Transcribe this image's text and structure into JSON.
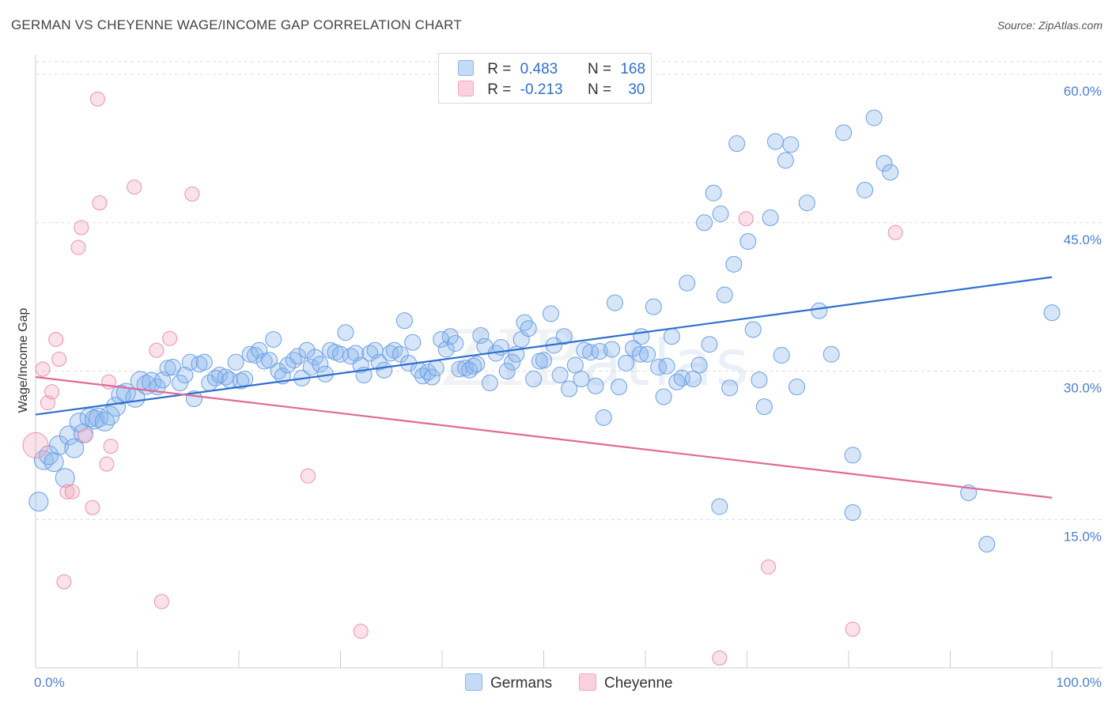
{
  "header": {
    "title": "GERMAN VS CHEYENNE WAGE/INCOME GAP CORRELATION CHART",
    "source": "Source: ZipAtlas.com"
  },
  "legend": {
    "germans": {
      "r_label": "R =",
      "r_value": "0.483",
      "n_label": "N =",
      "n_value": "168",
      "color": "#8ab4ea"
    },
    "cheyenne": {
      "r_label": "R =",
      "r_value": "-0.213",
      "n_label": "N =",
      "n_value": "30",
      "color": "#f4a8bf"
    }
  },
  "bottom_legend": {
    "germans": "Germans",
    "cheyenne": "Cheyenne"
  },
  "watermark": {
    "zip": "ZIP",
    "atlas": "atlas"
  },
  "chart_data": {
    "type": "scatter",
    "ylabel": "Wage/Income Gap",
    "xlim": [
      0,
      100
    ],
    "ylim": [
      0,
      62
    ],
    "y_ticks": [
      {
        "v": 15,
        "label": "15.0%"
      },
      {
        "v": 30,
        "label": "30.0%"
      },
      {
        "v": 45,
        "label": "45.0%"
      },
      {
        "v": 60,
        "label": "60.0%"
      }
    ],
    "x_tick_labels": [
      {
        "v": 0,
        "label": "0.0%"
      },
      {
        "v": 100,
        "label": "100.0%"
      }
    ],
    "grid": "dashed horizontal",
    "series": [
      {
        "name": "Germans",
        "color": "#6a9fe6",
        "trend": {
          "x": [
            0,
            100
          ],
          "y": [
            25.6,
            39.5
          ],
          "color": "#2f6fcf"
        },
        "points": [
          [
            0.3,
            16.8
          ],
          [
            0.8,
            21.0
          ],
          [
            1.3,
            21.5
          ],
          [
            1.8,
            20.8
          ],
          [
            2.3,
            22.5
          ],
          [
            2.9,
            19.2
          ],
          [
            3.3,
            23.5
          ],
          [
            3.8,
            22.2
          ],
          [
            4.3,
            24.8
          ],
          [
            4.7,
            23.7
          ],
          [
            5.3,
            25.3
          ],
          [
            5.8,
            25.1
          ],
          [
            6.2,
            25.3
          ],
          [
            6.8,
            24.9
          ],
          [
            7.3,
            25.5
          ],
          [
            7.9,
            26.4
          ],
          [
            8.4,
            27.6
          ],
          [
            8.9,
            27.8
          ],
          [
            9.8,
            27.3
          ],
          [
            10.3,
            29.0
          ],
          [
            10.9,
            28.6
          ],
          [
            11.4,
            28.9
          ],
          [
            12.0,
            28.4
          ],
          [
            12.5,
            29.1
          ],
          [
            13.0,
            30.3
          ],
          [
            13.5,
            30.4
          ],
          [
            14.2,
            28.8
          ],
          [
            14.7,
            29.6
          ],
          [
            15.2,
            30.9
          ],
          [
            15.6,
            27.2
          ],
          [
            16.1,
            30.7
          ],
          [
            16.6,
            30.9
          ],
          [
            17.1,
            28.8
          ],
          [
            17.7,
            29.3
          ],
          [
            18.1,
            29.6
          ],
          [
            18.7,
            29.4
          ],
          [
            19.1,
            29.1
          ],
          [
            19.7,
            30.9
          ],
          [
            20.2,
            29.0
          ],
          [
            20.6,
            29.2
          ],
          [
            21.1,
            31.7
          ],
          [
            21.6,
            31.6
          ],
          [
            22.0,
            32.1
          ],
          [
            22.5,
            31.0
          ],
          [
            23.0,
            31.1
          ],
          [
            23.4,
            33.2
          ],
          [
            23.9,
            30.0
          ],
          [
            24.3,
            29.5
          ],
          [
            24.8,
            30.6
          ],
          [
            25.4,
            31.1
          ],
          [
            25.8,
            31.5
          ],
          [
            26.2,
            29.3
          ],
          [
            26.7,
            32.1
          ],
          [
            27.1,
            30.4
          ],
          [
            27.5,
            31.4
          ],
          [
            28.0,
            30.7
          ],
          [
            28.5,
            29.7
          ],
          [
            29.0,
            32.1
          ],
          [
            29.5,
            31.9
          ],
          [
            30.0,
            31.7
          ],
          [
            30.5,
            33.9
          ],
          [
            31.0,
            31.5
          ],
          [
            31.5,
            31.8
          ],
          [
            32.0,
            30.6
          ],
          [
            32.3,
            29.6
          ],
          [
            32.9,
            31.8
          ],
          [
            33.4,
            32.1
          ],
          [
            33.8,
            30.9
          ],
          [
            34.3,
            30.1
          ],
          [
            34.9,
            31.8
          ],
          [
            35.3,
            32.1
          ],
          [
            35.9,
            31.7
          ],
          [
            36.3,
            35.1
          ],
          [
            36.7,
            30.8
          ],
          [
            37.1,
            32.9
          ],
          [
            37.7,
            30.1
          ],
          [
            38.1,
            29.5
          ],
          [
            38.6,
            29.9
          ],
          [
            39.0,
            29.4
          ],
          [
            39.4,
            30.3
          ],
          [
            39.9,
            33.2
          ],
          [
            40.4,
            32.2
          ],
          [
            40.8,
            33.5
          ],
          [
            41.3,
            32.8
          ],
          [
            41.7,
            30.2
          ],
          [
            42.3,
            30.3
          ],
          [
            42.7,
            30.1
          ],
          [
            43.1,
            30.5
          ],
          [
            43.4,
            30.7
          ],
          [
            43.8,
            33.6
          ],
          [
            44.2,
            32.5
          ],
          [
            44.7,
            28.8
          ],
          [
            45.3,
            31.8
          ],
          [
            45.8,
            32.4
          ],
          [
            46.4,
            30.0
          ],
          [
            46.9,
            30.9
          ],
          [
            47.3,
            31.7
          ],
          [
            47.8,
            33.2
          ],
          [
            48.1,
            34.9
          ],
          [
            48.5,
            34.3
          ],
          [
            49.0,
            29.2
          ],
          [
            49.6,
            31.0
          ],
          [
            50.0,
            31.1
          ],
          [
            50.7,
            35.8
          ],
          [
            51.0,
            32.6
          ],
          [
            51.6,
            29.6
          ],
          [
            52.0,
            33.5
          ],
          [
            52.5,
            28.2
          ],
          [
            53.1,
            30.6
          ],
          [
            53.7,
            29.2
          ],
          [
            54.0,
            32.1
          ],
          [
            54.6,
            31.9
          ],
          [
            55.1,
            28.5
          ],
          [
            55.5,
            32.0
          ],
          [
            55.9,
            25.3
          ],
          [
            56.7,
            32.2
          ],
          [
            57.0,
            36.9
          ],
          [
            57.4,
            28.4
          ],
          [
            58.1,
            30.8
          ],
          [
            58.8,
            32.3
          ],
          [
            59.5,
            31.7
          ],
          [
            59.6,
            33.5
          ],
          [
            60.2,
            31.7
          ],
          [
            60.8,
            36.5
          ],
          [
            61.3,
            30.4
          ],
          [
            61.8,
            27.4
          ],
          [
            62.1,
            30.5
          ],
          [
            62.6,
            33.5
          ],
          [
            63.1,
            28.9
          ],
          [
            63.6,
            29.3
          ],
          [
            64.1,
            38.9
          ],
          [
            64.7,
            29.2
          ],
          [
            65.3,
            30.6
          ],
          [
            65.8,
            45.0
          ],
          [
            66.3,
            32.7
          ],
          [
            66.7,
            48.0
          ],
          [
            67.4,
            45.9
          ],
          [
            67.8,
            37.7
          ],
          [
            68.3,
            28.3
          ],
          [
            68.7,
            40.8
          ],
          [
            69.0,
            53.0
          ],
          [
            70.1,
            43.1
          ],
          [
            70.6,
            34.2
          ],
          [
            71.2,
            29.1
          ],
          [
            71.7,
            26.4
          ],
          [
            72.3,
            45.5
          ],
          [
            72.8,
            53.2
          ],
          [
            73.4,
            31.6
          ],
          [
            73.8,
            51.3
          ],
          [
            74.3,
            52.9
          ],
          [
            74.9,
            28.4
          ],
          [
            75.9,
            47.0
          ],
          [
            77.1,
            36.1
          ],
          [
            78.3,
            31.7
          ],
          [
            79.5,
            54.1
          ],
          [
            80.4,
            21.5
          ],
          [
            81.6,
            48.3
          ],
          [
            82.5,
            55.6
          ],
          [
            83.5,
            51.0
          ],
          [
            84.1,
            50.1
          ],
          [
            67.3,
            16.3
          ],
          [
            80.4,
            15.7
          ],
          [
            91.8,
            17.7
          ],
          [
            93.6,
            12.5
          ],
          [
            100.0,
            35.9
          ]
        ]
      },
      {
        "name": "Cheyenne",
        "color": "#f4a8bf",
        "trend": {
          "x": [
            0,
            100
          ],
          "y": [
            29.4,
            17.2
          ],
          "color": "#e06a96"
        },
        "points": [
          [
            0.0,
            22.5
          ],
          [
            0.7,
            30.2
          ],
          [
            1.2,
            26.8
          ],
          [
            1.6,
            27.9
          ],
          [
            2.0,
            33.2
          ],
          [
            2.3,
            31.2
          ],
          [
            2.8,
            8.7
          ],
          [
            3.1,
            17.8
          ],
          [
            3.6,
            17.8
          ],
          [
            4.2,
            42.5
          ],
          [
            4.5,
            44.5
          ],
          [
            4.9,
            23.5
          ],
          [
            5.6,
            16.2
          ],
          [
            6.1,
            57.5
          ],
          [
            6.3,
            47.0
          ],
          [
            7.0,
            20.6
          ],
          [
            7.2,
            28.9
          ],
          [
            7.4,
            22.4
          ],
          [
            9.7,
            48.6
          ],
          [
            11.9,
            32.1
          ],
          [
            12.4,
            6.7
          ],
          [
            13.2,
            33.3
          ],
          [
            15.4,
            47.9
          ],
          [
            26.8,
            19.4
          ],
          [
            32.0,
            3.7
          ],
          [
            67.3,
            1.0
          ],
          [
            69.9,
            45.4
          ],
          [
            72.1,
            10.2
          ],
          [
            80.4,
            3.9
          ],
          [
            84.6,
            44.0
          ]
        ]
      }
    ]
  }
}
